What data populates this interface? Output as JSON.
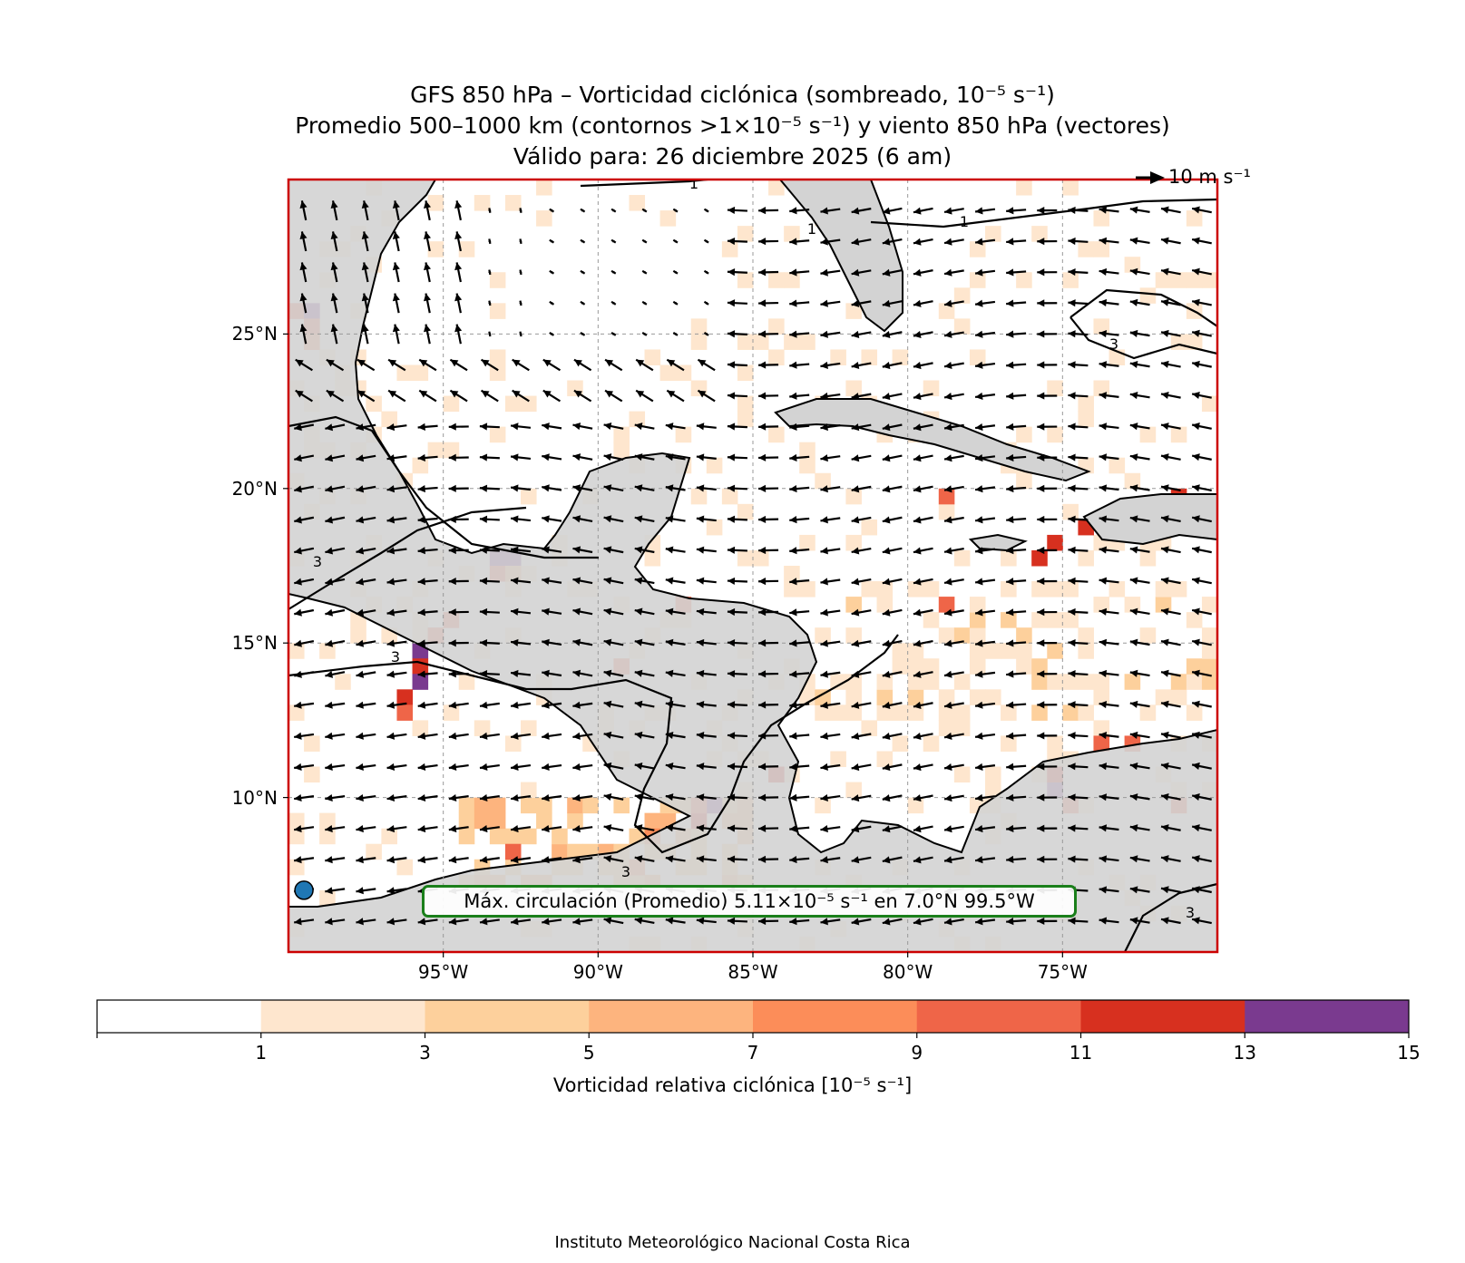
{
  "title": {
    "line1": "GFS 850 hPa – Vorticidad ciclónica (sombreado, 10⁻⁵ s⁻¹)",
    "line2": "Promedio 500–1000 km (contornos >1×10⁻⁵ s⁻¹) y viento 850 hPa (vectores)",
    "line3": "Válido para: 26 diciembre 2025 (6 am)"
  },
  "reference_vector": {
    "label": "10 m s⁻¹",
    "speed_ms": 10
  },
  "map": {
    "lon_range": [
      -100,
      -70
    ],
    "lat_range": [
      5,
      30
    ],
    "lat_ticks": [
      {
        "value": 25,
        "label": "25°N"
      },
      {
        "value": 20,
        "label": "20°N"
      },
      {
        "value": 15,
        "label": "15°N"
      },
      {
        "value": 10,
        "label": "10°N"
      }
    ],
    "lon_ticks": [
      {
        "value": -95,
        "label": "95°W"
      },
      {
        "value": -90,
        "label": "90°W"
      },
      {
        "value": -85,
        "label": "85°W"
      },
      {
        "value": -80,
        "label": "80°W"
      },
      {
        "value": -75,
        "label": "75°W"
      }
    ],
    "grid": true,
    "frame_color": "#cc0000",
    "land_color": "#d3d3d3",
    "contour_labels": [
      "1",
      "1",
      "1",
      "3",
      "3",
      "3",
      "3",
      "3"
    ],
    "max_marker": {
      "lat": 7.0,
      "lon": -99.5,
      "color": "#1f77b4"
    }
  },
  "max_box": {
    "text": "Máx. circulación (Promedio) 5.11×10⁻⁵ s⁻¹ en 7.0°N 99.5°W",
    "border_color": "#1a7f1a"
  },
  "colorbar": {
    "title": "Vorticidad relativa ciclónica [10⁻⁵ s⁻¹]",
    "bounds": [
      -1,
      1,
      3,
      5,
      7,
      9,
      11,
      13,
      15
    ],
    "tick_labels": [
      "1",
      "3",
      "5",
      "7",
      "9",
      "11",
      "13",
      "15"
    ],
    "colors": [
      "#ffffff",
      "#fee6ce",
      "#fdd09c",
      "#fdb47e",
      "#fc8d59",
      "#ef6548",
      "#d7301f",
      "#7a3a8f"
    ]
  },
  "chart_data": {
    "type": "heatmap",
    "title": "GFS 850 hPa – Vorticidad ciclónica (sombreado, 10⁻⁵ s⁻¹)",
    "units": "10⁻⁵ s⁻¹",
    "cells": [
      {
        "lat": 25.5,
        "lon": -100,
        "v": 9
      },
      {
        "lat": 25.5,
        "lon": -99.5,
        "v": 13
      },
      {
        "lat": 25.0,
        "lon": -99.5,
        "v": 9
      },
      {
        "lat": 24.5,
        "lon": -99.5,
        "v": 7
      },
      {
        "lat": 17.5,
        "lon": -93.5,
        "v": 14
      },
      {
        "lat": 17.5,
        "lon": -93.0,
        "v": 14
      },
      {
        "lat": 17.0,
        "lon": -93.5,
        "v": 9
      },
      {
        "lat": 17.0,
        "lon": -93.0,
        "v": 6
      },
      {
        "lat": 15.5,
        "lon": -95.0,
        "v": 9
      },
      {
        "lat": 15.0,
        "lon": -95.5,
        "v": 9
      },
      {
        "lat": 14.5,
        "lon": -96.0,
        "v": 13
      },
      {
        "lat": 14.0,
        "lon": -96.0,
        "v": 11
      },
      {
        "lat": 13.5,
        "lon": -96.0,
        "v": 14
      },
      {
        "lat": 13.0,
        "lon": -96.5,
        "v": 11
      },
      {
        "lat": 12.5,
        "lon": -96.5,
        "v": 9
      },
      {
        "lat": 16.0,
        "lon": -87.5,
        "v": 9
      },
      {
        "lat": 14.0,
        "lon": -89.5,
        "v": 9
      },
      {
        "lat": 9.5,
        "lon": -86.5,
        "v": 14
      },
      {
        "lat": 9.0,
        "lon": -87.0,
        "v": 11
      },
      {
        "lat": 9.5,
        "lon": -87.0,
        "v": 9
      },
      {
        "lat": 10.5,
        "lon": -84.5,
        "v": 11
      },
      {
        "lat": 10.0,
        "lon": -75.5,
        "v": 14
      },
      {
        "lat": 10.5,
        "lon": -75.5,
        "v": 11
      },
      {
        "lat": 9.5,
        "lon": -75.0,
        "v": 9
      },
      {
        "lat": 11.5,
        "lon": -74.0,
        "v": 9
      },
      {
        "lat": 11.5,
        "lon": -73.0,
        "v": 9
      },
      {
        "lat": 9.5,
        "lon": -71.5,
        "v": 9
      },
      {
        "lat": 19.5,
        "lon": -79.0,
        "v": 9
      },
      {
        "lat": 18.0,
        "lon": -75.5,
        "v": 11
      },
      {
        "lat": 17.5,
        "lon": -76.0,
        "v": 11
      },
      {
        "lat": 18.5,
        "lon": -74.5,
        "v": 11
      },
      {
        "lat": 19.0,
        "lon": -73.0,
        "v": 11
      },
      {
        "lat": 19.5,
        "lon": -71.5,
        "v": 11
      },
      {
        "lat": 19.0,
        "lon": -71.5,
        "v": 9
      },
      {
        "lat": 16.0,
        "lon": -79.0,
        "v": 9
      },
      {
        "lat": 8.0,
        "lon": -93.0,
        "v": 9
      },
      {
        "lat": 7.5,
        "lon": -89.0,
        "v": 7
      },
      {
        "lat": 8.5,
        "lon": -88.5,
        "v": 7
      }
    ],
    "max_circulation": {
      "value": 5.11,
      "lat": 7.0,
      "lon": -99.5
    }
  }
}
